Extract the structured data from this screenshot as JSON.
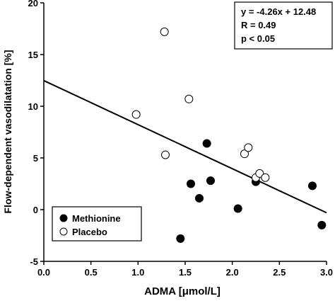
{
  "chart_data": {
    "type": "scatter",
    "xlabel": "ADMA [μmol/L]",
    "ylabel": "Flow-dependent vasodilatation [%]",
    "xlim": [
      0.0,
      3.0
    ],
    "ylim": [
      -5,
      20
    ],
    "x_ticks": [
      "0.0",
      "0.5",
      "1.0",
      "1.5",
      "2.0",
      "2.5",
      "3.0"
    ],
    "y_ticks": [
      "-5",
      "0",
      "5",
      "10",
      "15",
      "20"
    ],
    "legend": {
      "position": "bottom-left"
    },
    "annotation": [
      "y = -4.26x + 12.48",
      "R = 0.49",
      "p < 0.05"
    ],
    "regression": {
      "slope": -4.26,
      "intercept": 12.48
    },
    "series": [
      {
        "name": "Methionine",
        "marker": "filled",
        "points": [
          [
            1.45,
            -2.8
          ],
          [
            1.56,
            2.5
          ],
          [
            1.65,
            1.1
          ],
          [
            1.73,
            6.4
          ],
          [
            1.77,
            2.8
          ],
          [
            2.06,
            0.1
          ],
          [
            2.25,
            2.7
          ],
          [
            2.85,
            2.3
          ],
          [
            2.95,
            -1.5
          ]
        ]
      },
      {
        "name": "Placebo",
        "marker": "open",
        "points": [
          [
            0.98,
            9.2
          ],
          [
            1.28,
            17.2
          ],
          [
            1.29,
            5.3
          ],
          [
            1.54,
            10.7
          ],
          [
            2.13,
            5.4
          ],
          [
            2.17,
            6.0
          ],
          [
            2.25,
            3.1
          ],
          [
            2.29,
            3.5
          ],
          [
            2.35,
            3.1
          ]
        ]
      }
    ]
  }
}
